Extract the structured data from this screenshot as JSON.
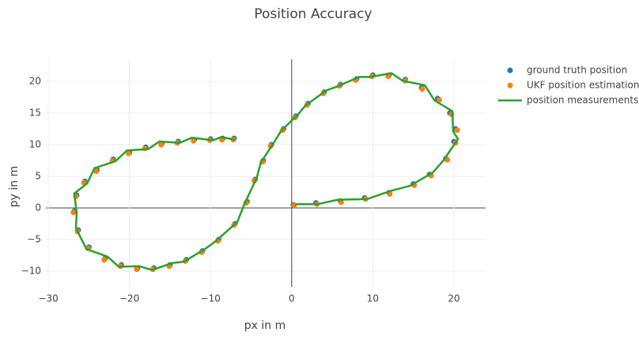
{
  "chart_data": {
    "type": "scatter",
    "title": "Position Accuracy",
    "x_label": "px in m",
    "y_label": "py in m",
    "xlim": [
      -30.3,
      23.9
    ],
    "ylim": [
      -12.5,
      23.5
    ],
    "xticks": [
      {
        "value": -30,
        "label": "−30"
      },
      {
        "value": -20,
        "label": "−20"
      },
      {
        "value": -10,
        "label": "−10"
      },
      0,
      10,
      20
    ],
    "yticks": [
      {
        "value": -10,
        "label": "−10"
      },
      {
        "value": -5,
        "label": "−5"
      },
      0,
      5,
      10,
      15,
      20
    ],
    "grid": true,
    "legend": "top-right",
    "series": [
      {
        "name": "ground truth position",
        "color": "#1f77b4",
        "mode": "markers",
        "x": [
          0.2,
          3,
          6,
          9,
          12,
          15,
          17,
          19,
          20,
          20.2,
          19.5,
          18,
          16,
          14,
          12,
          10,
          8,
          6,
          4,
          2,
          0.5,
          -1,
          -2.5,
          -3.5,
          -4.5,
          -5.5,
          -7,
          -9,
          -11,
          -13,
          -15,
          -17,
          -19,
          -21,
          -23,
          -25,
          -26.3,
          -26.8,
          -26.5,
          -25.5,
          -24,
          -22,
          -20,
          -18,
          -16,
          -14,
          -12,
          -10,
          -8.5,
          -7.1
        ],
        "values": [
          0.5,
          0.8,
          1.1,
          1.6,
          2.4,
          3.8,
          5.3,
          7.8,
          10.5,
          12.5,
          15,
          17.3,
          19,
          20.3,
          21,
          21,
          20.4,
          19.5,
          18.3,
          16.5,
          14.5,
          12.5,
          10,
          7.5,
          4.5,
          1,
          -2.5,
          -5,
          -6.8,
          -8.2,
          -9,
          -9.5,
          -9.5,
          -9,
          -8,
          -6.2,
          -3.5,
          -0.5,
          2,
          4.2,
          6,
          7.7,
          8.8,
          9.6,
          10.2,
          10.5,
          10.8,
          10.9,
          11,
          11
        ]
      },
      {
        "name": "UKF position estimation",
        "color": "#ff7f0e",
        "mode": "markers",
        "x": [
          0.3,
          3.1,
          6.1,
          9.1,
          12.1,
          15.1,
          17.2,
          19.2,
          20.2,
          20.4,
          19.7,
          18.2,
          16.1,
          14,
          11.9,
          9.9,
          7.9,
          5.9,
          3.9,
          1.9,
          0.4,
          -1.1,
          -2.6,
          -3.6,
          -4.6,
          -5.6,
          -7.1,
          -9.1,
          -11.1,
          -13.1,
          -15.1,
          -17.1,
          -19.1,
          -21.1,
          -23.1,
          -25.1,
          -26.4,
          -26.9,
          -26.6,
          -25.6,
          -24.1,
          -22.1,
          -20.1,
          -18.1,
          -16.1,
          -14.1,
          -12.1,
          -10.1,
          -8.6,
          -7.2
        ],
        "values": [
          0.4,
          0.6,
          0.9,
          1.4,
          2.2,
          3.6,
          5.1,
          7.6,
          10.3,
          12.3,
          14.8,
          17.1,
          18.8,
          20.1,
          20.8,
          20.8,
          20.2,
          19.3,
          18.1,
          16.3,
          14.3,
          12.3,
          9.8,
          7.3,
          4.3,
          0.8,
          -2.7,
          -5.2,
          -7,
          -8.4,
          -9.2,
          -9.7,
          -9.7,
          -9.2,
          -8.2,
          -6.4,
          -3.7,
          -0.7,
          1.8,
          4,
          5.8,
          7.5,
          8.6,
          9.4,
          10,
          10.3,
          10.6,
          10.7,
          10.8,
          10.8
        ]
      },
      {
        "name": "position measurements",
        "color": "#2ca02c",
        "mode": "lines",
        "x": [
          0.4,
          3.2,
          5.7,
          9.3,
          12.2,
          14.6,
          17.4,
          18.7,
          20.5,
          19.9,
          19.8,
          17.6,
          16.4,
          13.7,
          12.3,
          9.6,
          8.3,
          5.6,
          4.3,
          1.7,
          0.8,
          -1.3,
          -2.2,
          -3.8,
          -4.3,
          -5.8,
          -6.7,
          -9.4,
          -10.7,
          -13.3,
          -14.7,
          -17.2,
          -18.8,
          -21.3,
          -22.7,
          -25.3,
          -26.6,
          -26.5,
          -26.8,
          -25.2,
          -24.3,
          -21.7,
          -20.3,
          -17.7,
          -16.3,
          -13.8,
          -12.3,
          -9.7,
          -8.7,
          -7
        ],
        "values": [
          0.6,
          0.6,
          1.3,
          1.4,
          2.7,
          3.5,
          5.6,
          7.5,
          10.9,
          12.1,
          15.3,
          17,
          19.4,
          20.1,
          21.3,
          20.7,
          20.7,
          19.2,
          18.6,
          16.2,
          14.8,
          12.2,
          10.3,
          7.2,
          4.8,
          0.7,
          -2.2,
          -5.3,
          -6.5,
          -8.5,
          -8.7,
          -9.8,
          -9.2,
          -9.3,
          -7.7,
          -6.5,
          -3.2,
          -0.8,
          2.3,
          3.9,
          6.3,
          7.4,
          9.1,
          9.3,
          10.5,
          10.3,
          11.1,
          10.7,
          11.2,
          10.8
        ]
      }
    ]
  }
}
